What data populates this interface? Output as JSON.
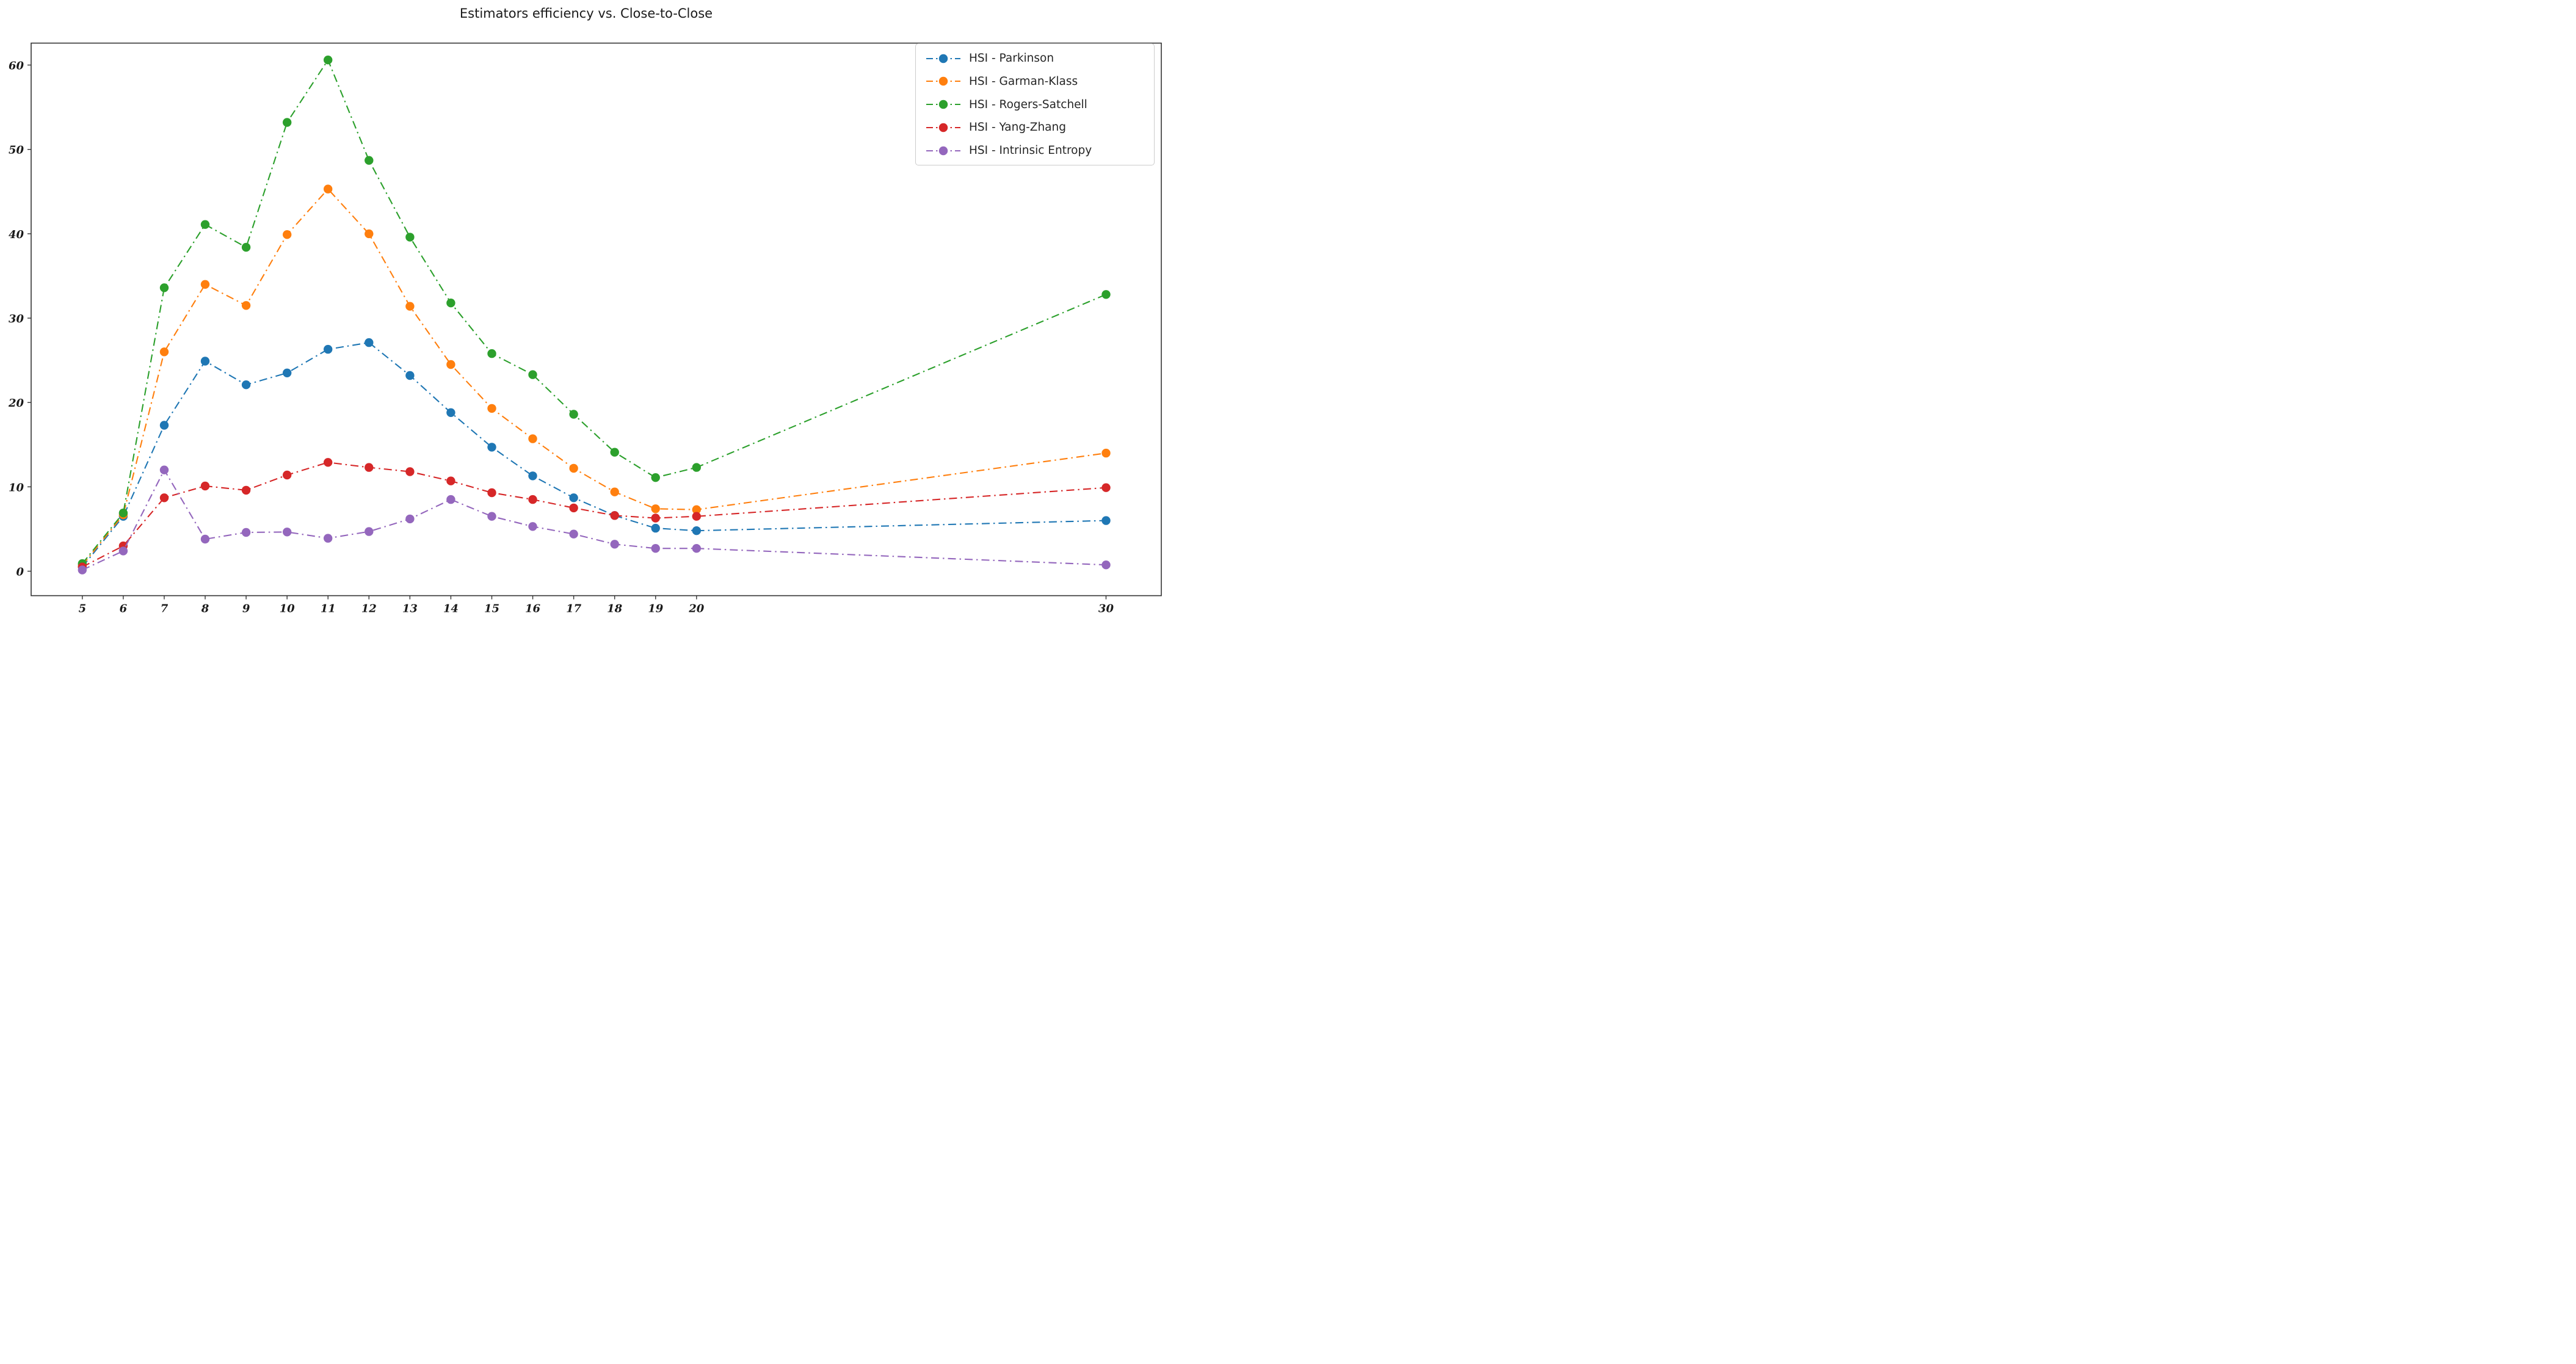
{
  "figure": {
    "title": "Estimators efficiency vs. Close-to-Close"
  },
  "chart_data": {
    "type": "line",
    "title": "Estimators efficiency vs. Close-to-Close",
    "xlabel": "",
    "ylabel": "",
    "grid": false,
    "line_style": "dash-dot",
    "marker": "circle",
    "x": [
      5,
      6,
      7,
      8,
      9,
      10,
      11,
      12,
      13,
      14,
      15,
      16,
      17,
      18,
      19,
      20,
      30
    ],
    "series": [
      {
        "name": "HSI - Parkinson",
        "color": "#1f77b4",
        "values": [
          0.5,
          6.5,
          17.3,
          24.9,
          22.1,
          23.5,
          26.3,
          27.1,
          23.2,
          18.8,
          14.7,
          11.3,
          8.7,
          6.6,
          5.1,
          4.8,
          6.0
        ]
      },
      {
        "name": "HSI - Garman-Klass",
        "color": "#ff7f0e",
        "values": [
          0.7,
          6.7,
          26.0,
          34.0,
          31.5,
          39.9,
          45.3,
          40.0,
          31.4,
          24.5,
          19.3,
          15.7,
          12.2,
          9.4,
          7.4,
          7.3,
          14.0
        ]
      },
      {
        "name": "HSI - Rogers-Satchell",
        "color": "#2ca02c",
        "values": [
          0.9,
          6.9,
          33.6,
          41.1,
          38.4,
          53.2,
          60.6,
          48.7,
          39.6,
          31.8,
          25.8,
          23.3,
          18.6,
          14.1,
          11.1,
          12.3,
          32.8
        ]
      },
      {
        "name": "HSI - Yang-Zhang",
        "color": "#d62728",
        "values": [
          0.5,
          3.0,
          8.7,
          10.1,
          9.6,
          11.4,
          12.9,
          12.3,
          11.8,
          10.7,
          9.3,
          8.5,
          7.5,
          6.6,
          6.3,
          6.5,
          9.9
        ]
      },
      {
        "name": "HSI - Intrinsic Entropy",
        "color": "#9467bd",
        "values": [
          0.15,
          2.4,
          12.0,
          3.8,
          4.6,
          4.65,
          3.9,
          4.7,
          6.2,
          8.5,
          6.5,
          5.3,
          4.4,
          3.2,
          2.7,
          2.7,
          0.75
        ]
      }
    ],
    "x_ticks": [
      5,
      6,
      7,
      8,
      9,
      10,
      11,
      12,
      13,
      14,
      15,
      16,
      17,
      18,
      19,
      20,
      30
    ],
    "y_ticks": [
      0,
      10,
      20,
      30,
      40,
      50,
      60
    ],
    "xlim": [
      3.75,
      31.35
    ],
    "ylim": [
      -2.9,
      62.6
    ],
    "legend": {
      "position": "upper-right",
      "entries": [
        "HSI - Parkinson",
        "HSI - Garman-Klass",
        "HSI - Rogers-Satchell",
        "HSI - Yang-Zhang",
        "HSI - Intrinsic Entropy"
      ]
    }
  }
}
